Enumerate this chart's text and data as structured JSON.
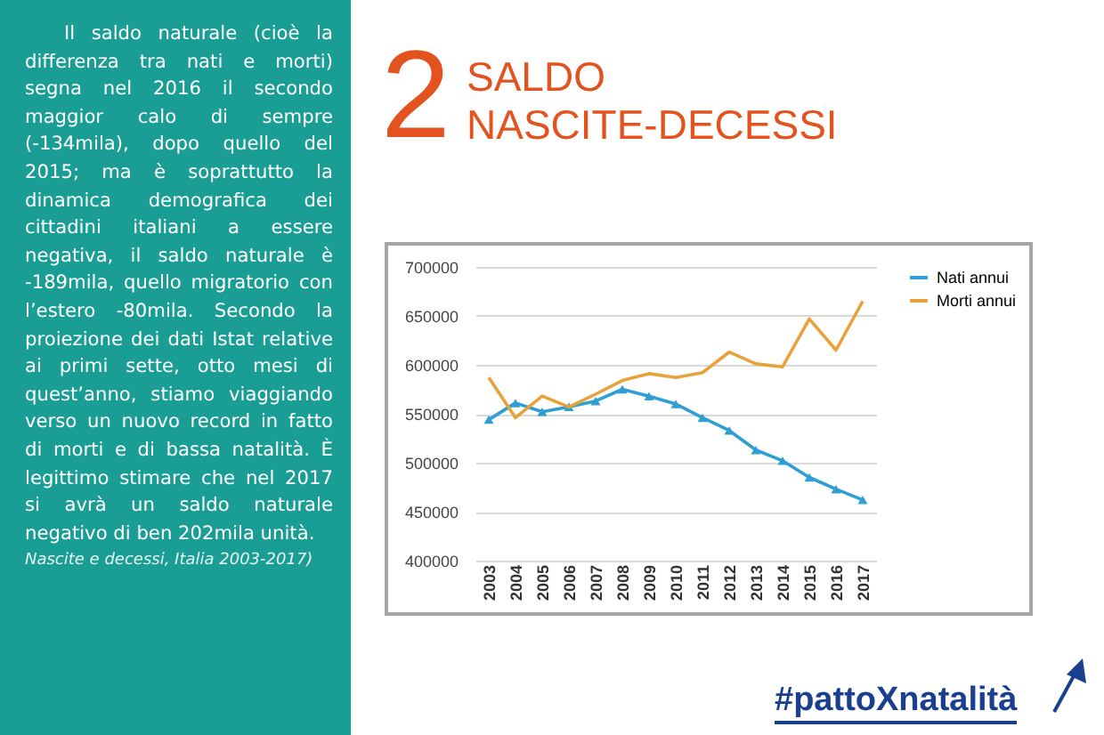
{
  "chart_data": {
    "type": "line",
    "title": "SALDO NASCITE-DECESSI",
    "categories": [
      "2003",
      "2004",
      "2005",
      "2006",
      "2007",
      "2008",
      "2009",
      "2010",
      "2011",
      "2012",
      "2013",
      "2014",
      "2015",
      "2016",
      "2017"
    ],
    "series": [
      {
        "name": "Nati annui",
        "color": "#2f9fd3",
        "marker": "triangle",
        "values": [
          544000,
          561000,
          552000,
          557000,
          563000,
          575000,
          568000,
          560000,
          546000,
          533000,
          513000,
          502000,
          485000,
          473000,
          462000
        ]
      },
      {
        "name": "Morti annui",
        "color": "#e8a23a",
        "marker": "none",
        "values": [
          587000,
          546000,
          568000,
          557000,
          570000,
          584000,
          591000,
          587000,
          592000,
          613000,
          601000,
          598000,
          647000,
          615000,
          665000
        ]
      }
    ],
    "ylim": [
      400000,
      700000
    ],
    "yticks": [
      400000,
      450000,
      500000,
      550000,
      600000,
      650000,
      700000
    ],
    "grid": "y",
    "legend": "right",
    "line_style": "solid",
    "annotations": [
      "2",
      "Il saldo naturale (cioè la differenza tra nati e morti) segna nel 2016 il secondo maggior calo di sempre (-134mila), dopo quello del 2015; ma è soprattutto la dinamica demografica dei cittadini italiani a essere negativa, il saldo naturale è -189mila, quello migratorio con l’estero -80mila. Secondo la proiezione dei dati Istat relative ai primi sette, otto mesi di quest’anno, stiamo viaggiando verso un nuovo record in fatto di morti e di bassa natalità. È legittimo stimare che nel 2017 si avrà un saldo naturale negativo di ben 202mila unità.",
      "Nascite e decessi, Italia 2003-2017)",
      "#pattoXnatalità"
    ]
  }
}
